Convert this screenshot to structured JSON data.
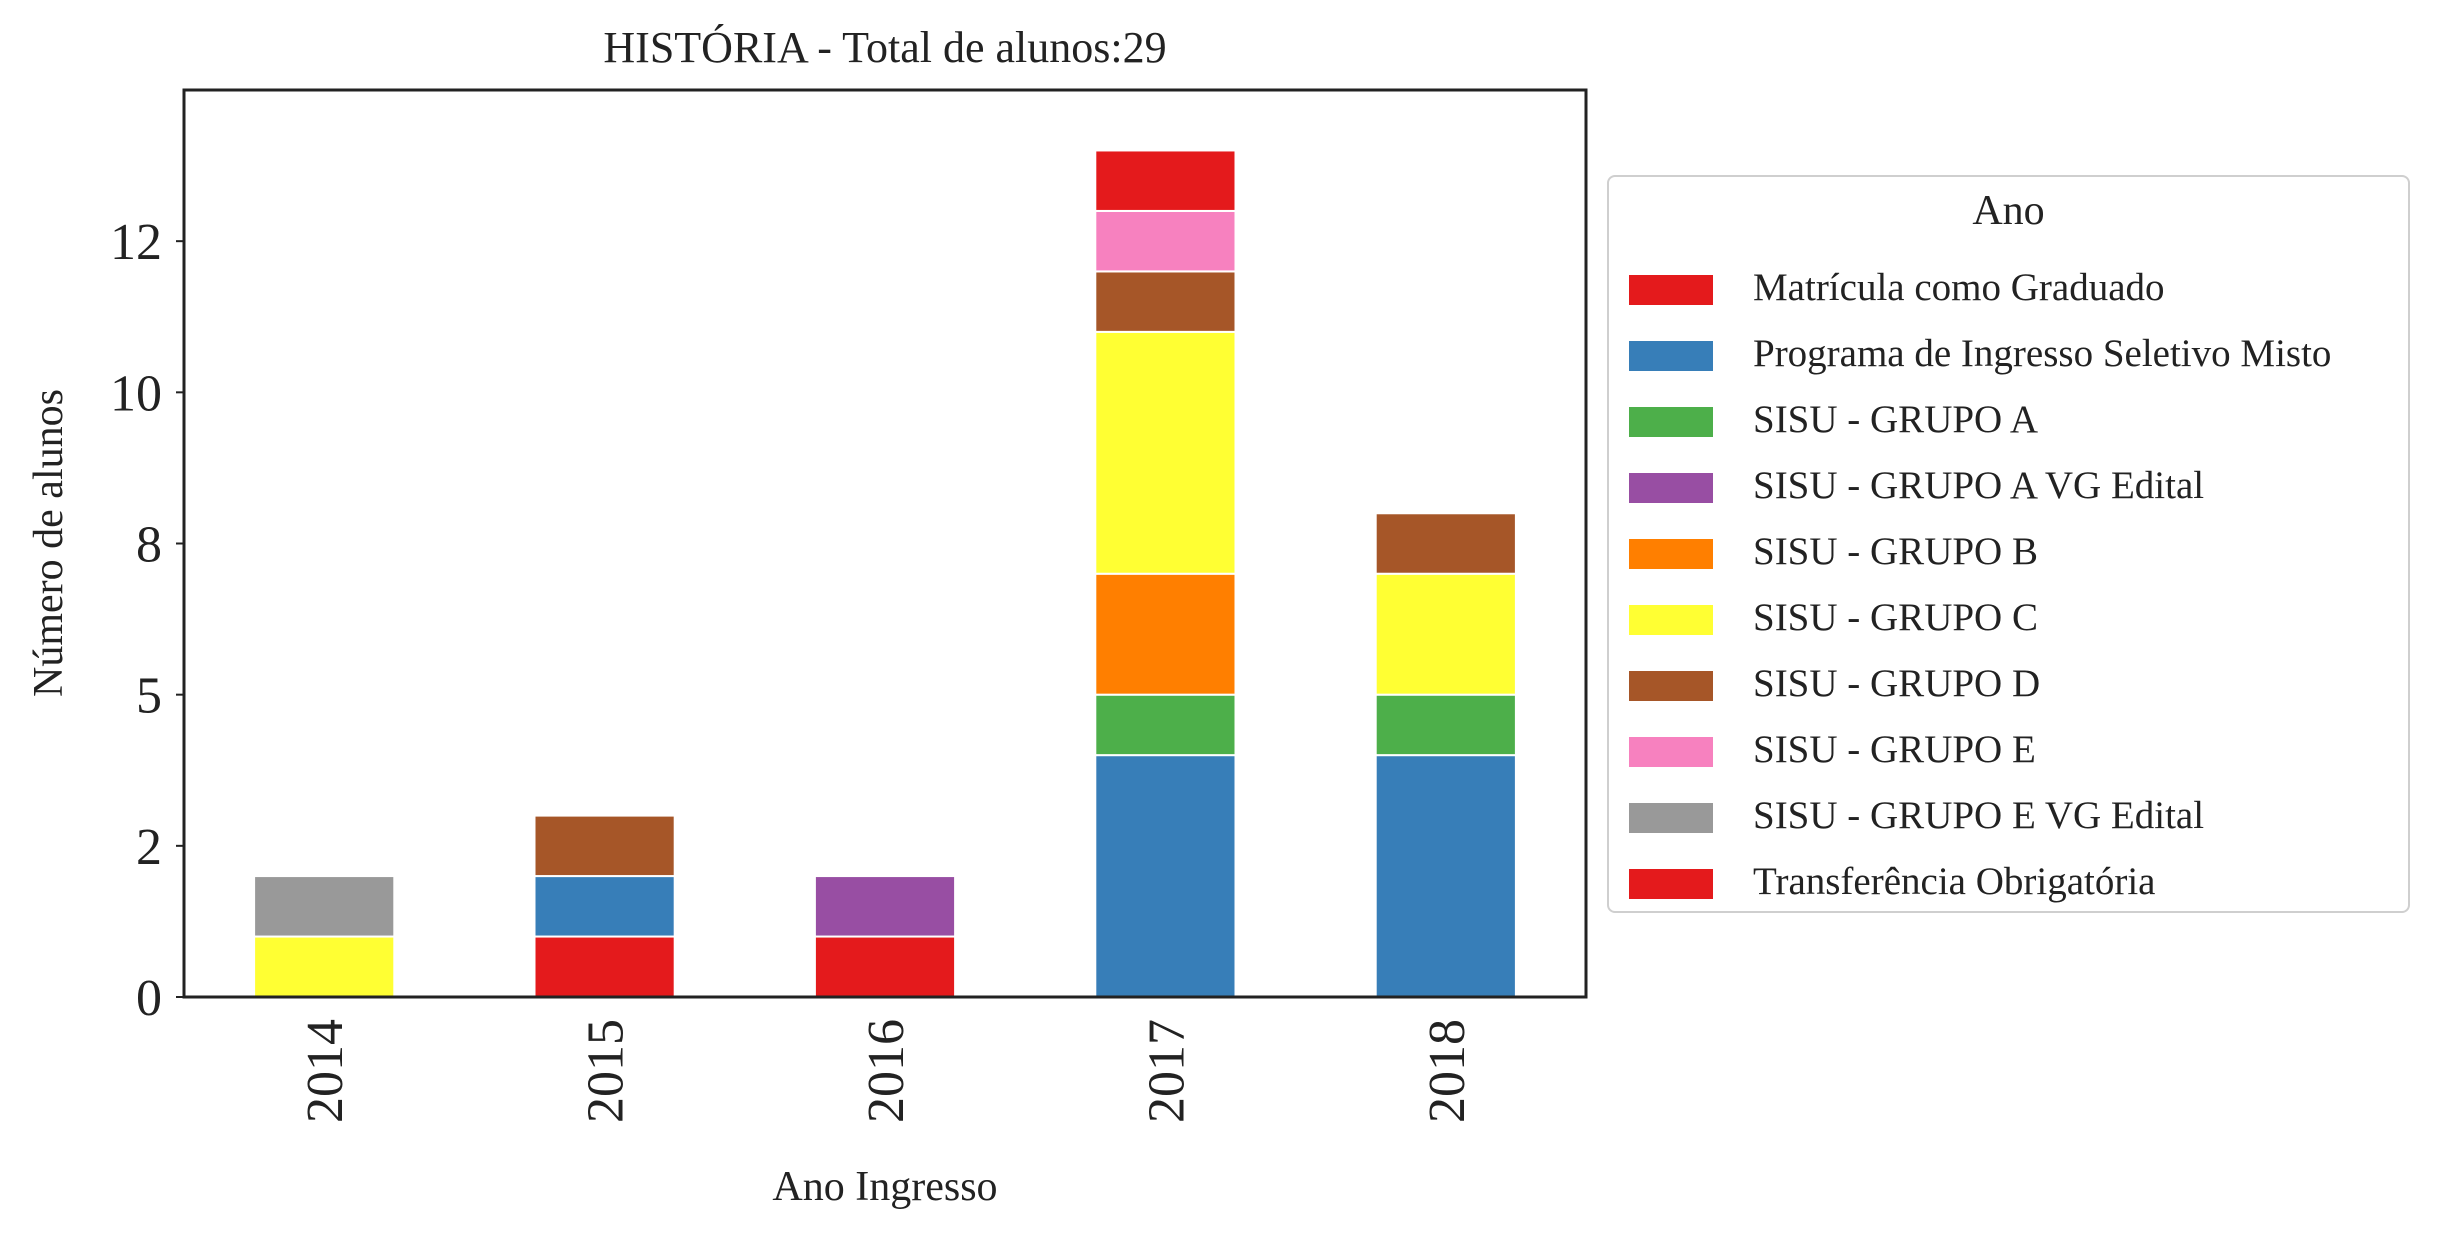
{
  "chart_data": {
    "type": "bar",
    "stacked": true,
    "title": "HISTÓRIA - Total de alunos:29",
    "xlabel": "Ano Ingresso",
    "ylabel": "Número de alunos",
    "categories": [
      "2014",
      "2015",
      "2016",
      "2017",
      "2018"
    ],
    "ylim": [
      0,
      15
    ],
    "yticks": [
      {
        "value": 0,
        "label": "0"
      },
      {
        "value": 2.5,
        "label": "2"
      },
      {
        "value": 5,
        "label": "5"
      },
      {
        "value": 7.5,
        "label": "8"
      },
      {
        "value": 10,
        "label": "10"
      },
      {
        "value": 12.5,
        "label": "12"
      }
    ],
    "grid": false,
    "legend": {
      "title": "Ano",
      "placement": "outside-right"
    },
    "series": [
      {
        "name": "Matrícula como Graduado",
        "color": "#e41a1c",
        "values": [
          0,
          0,
          0,
          1,
          0
        ]
      },
      {
        "name": "Programa de Ingresso Seletivo Misto",
        "color": "#377eb8",
        "values": [
          0,
          1,
          0,
          4,
          4
        ]
      },
      {
        "name": "SISU - GRUPO A",
        "color": "#4daf4a",
        "values": [
          0,
          0,
          0,
          1,
          1
        ]
      },
      {
        "name": "SISU - GRUPO A VG Edital",
        "color": "#984ea3",
        "values": [
          0,
          0,
          1,
          0,
          0
        ]
      },
      {
        "name": "SISU - GRUPO B",
        "color": "#ff7f00",
        "values": [
          0,
          0,
          0,
          2,
          0
        ]
      },
      {
        "name": "SISU - GRUPO C",
        "color": "#ffff33",
        "values": [
          1,
          0,
          0,
          4,
          2
        ]
      },
      {
        "name": "SISU - GRUPO D",
        "color": "#a65628",
        "values": [
          0,
          1,
          0,
          1,
          1
        ]
      },
      {
        "name": "SISU - GRUPO E",
        "color": "#f781bf",
        "values": [
          0,
          0,
          0,
          1,
          0
        ]
      },
      {
        "name": "SISU - GRUPO E VG Edital",
        "color": "#999999",
        "values": [
          1,
          0,
          0,
          0,
          0
        ]
      },
      {
        "name": "Transferência Obrigatória",
        "color": "#e41a1c",
        "values": [
          0,
          1,
          1,
          0,
          0
        ]
      }
    ],
    "stack_order": [
      "Transferência Obrigatória",
      "Programa de Ingresso Seletivo Misto",
      "SISU - GRUPO A",
      "SISU - GRUPO A VG Edital",
      "SISU - GRUPO B",
      "SISU - GRUPO C",
      "SISU - GRUPO D",
      "SISU - GRUPO E",
      "SISU - GRUPO E VG Edital",
      "Matrícula como Graduado"
    ]
  }
}
